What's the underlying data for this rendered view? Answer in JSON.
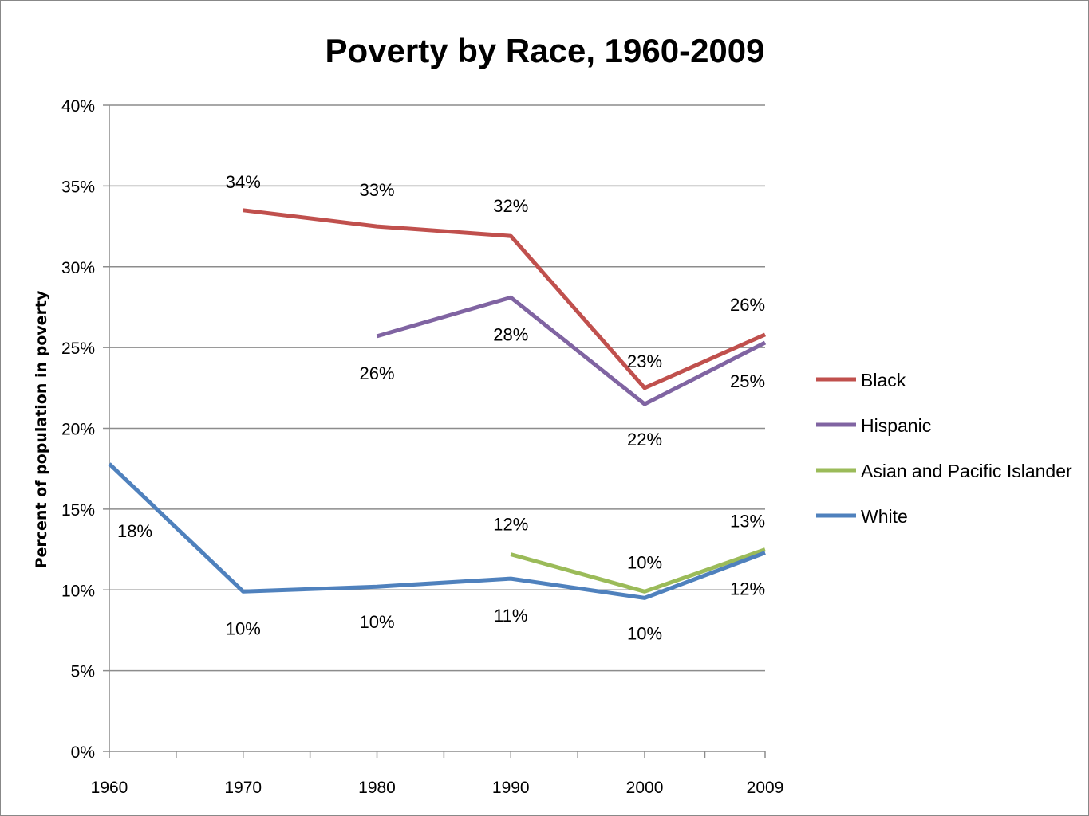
{
  "chart_data": {
    "type": "line",
    "title": "Poverty by Race, 1960-2009",
    "xlabel": "",
    "ylabel": "Percent of population in poverty",
    "x": [
      1960,
      1970,
      1980,
      1990,
      2000,
      2009
    ],
    "x_tick_labels": [
      "1960",
      "1970",
      "1980",
      "1990",
      "2000",
      "2009"
    ],
    "y_tick_labels": [
      "0%",
      "5%",
      "10%",
      "15%",
      "20%",
      "25%",
      "30%",
      "35%",
      "40%"
    ],
    "ylim": [
      0,
      40
    ],
    "grid": "horizontal",
    "legend_position": "right",
    "series": [
      {
        "name": "Black",
        "color": "#C0504D",
        "values": [
          null,
          33.5,
          32.5,
          31.9,
          22.5,
          25.8
        ],
        "labels": [
          null,
          "34%",
          "33%",
          "32%",
          "23%",
          "26%"
        ]
      },
      {
        "name": "Hispanic",
        "color": "#8064A2",
        "values": [
          null,
          null,
          25.7,
          28.1,
          21.5,
          25.3
        ],
        "labels": [
          null,
          null,
          "26%",
          "28%",
          "22%",
          "25%"
        ]
      },
      {
        "name": "Asian and Pacific Islander",
        "color": "#9BBB59",
        "values": [
          null,
          null,
          null,
          12.2,
          9.9,
          12.5
        ],
        "labels": [
          null,
          null,
          null,
          "12%",
          "10%",
          "13%"
        ]
      },
      {
        "name": "White",
        "color": "#4F81BD",
        "values": [
          17.8,
          9.9,
          10.2,
          10.7,
          9.5,
          12.3
        ],
        "labels": [
          "18%",
          "10%",
          "10%",
          "11%",
          "10%",
          "12%"
        ]
      }
    ]
  }
}
